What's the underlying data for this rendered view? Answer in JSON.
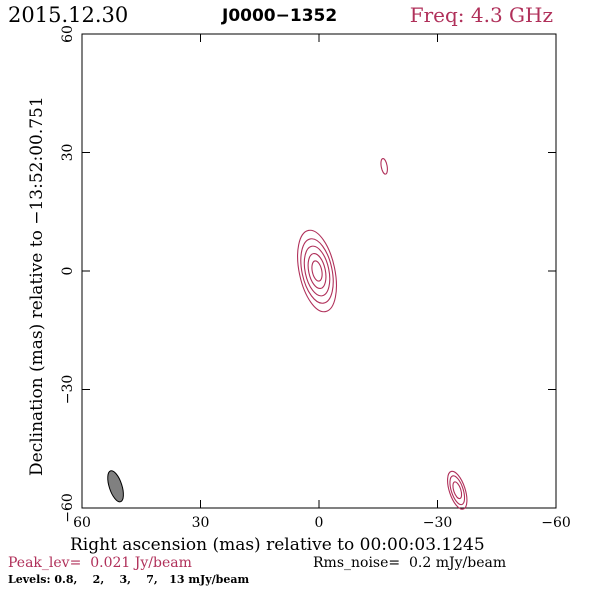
{
  "header": {
    "date": "2015.12.30",
    "source": "J0000−1352",
    "freq": "Freq: 4.3 GHz"
  },
  "footer": {
    "peak": "Peak_lev=  0.021 Jy/beam",
    "rms": "Rms_noise=  0.2 mJy/beam",
    "levels": "Levels: 0.8,    2,    3,    7,   13 mJy/beam"
  },
  "colors": {
    "contour": "#b0305a",
    "axes": "#000000",
    "beam_fill": "#808080"
  },
  "chart_data": {
    "type": "contour",
    "xlabel": "Right ascension (mas) relative to 00:00:03.1245",
    "ylabel": "Declination (mas) relative to −13:52:00.751",
    "xlim": [
      60,
      -60
    ],
    "ylim": [
      -60,
      60
    ],
    "xticks": [
      60,
      30,
      0,
      -30,
      -60
    ],
    "yticks": [
      -60,
      -30,
      0,
      30,
      60
    ],
    "xtick_labels": [
      "60",
      "30",
      "0",
      "−30",
      "−60"
    ],
    "ytick_labels": [
      "−60",
      "−30",
      "0",
      "30",
      "60"
    ],
    "levels_mJy": [
      0.8,
      2,
      3,
      7,
      13
    ],
    "peak_Jy_per_beam": 0.021,
    "rms_mJy_per_beam": 0.2,
    "components": [
      {
        "ra": 0.5,
        "dec": 0.0,
        "angle_deg": 12,
        "contours": [
          {
            "rx": 4.5,
            "ry": 10.5
          },
          {
            "rx": 3.8,
            "ry": 8.3
          },
          {
            "rx": 3.0,
            "ry": 6.4
          },
          {
            "rx": 2.1,
            "ry": 4.5
          },
          {
            "rx": 1.2,
            "ry": 2.6
          }
        ]
      },
      {
        "ra": -16.5,
        "dec": 26.5,
        "angle_deg": 10,
        "contours": [
          {
            "rx": 0.75,
            "ry": 2.0
          }
        ]
      },
      {
        "ra": -35.0,
        "dec": -55.5,
        "angle_deg": 18,
        "contours": [
          {
            "rx": 2.0,
            "ry": 5.0
          },
          {
            "rx": 1.5,
            "ry": 3.8
          },
          {
            "rx": 0.9,
            "ry": 2.2
          }
        ]
      }
    ],
    "beam": {
      "ra": 51.5,
      "dec": -54.5,
      "rx": 1.6,
      "ry": 4.1,
      "angle_deg": 18
    }
  }
}
